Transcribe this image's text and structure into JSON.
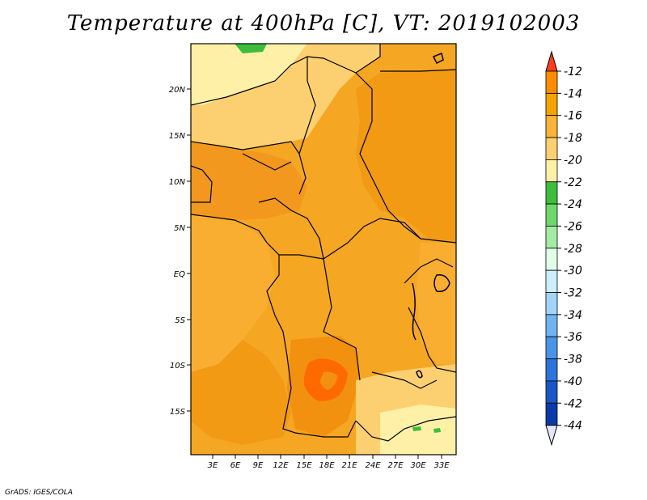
{
  "title": "Temperature at 400hPa [C], VT: 2019102003",
  "credit": "GrADS: IGES/COLA",
  "lat_labels": [
    "20N",
    "15N",
    "10N",
    "5N",
    "EQ",
    "5S",
    "10S",
    "15S"
  ],
  "lon_labels": [
    "3E",
    "6E",
    "9E",
    "12E",
    "15E",
    "18E",
    "21E",
    "24E",
    "27E",
    "30E",
    "33E"
  ],
  "colorbar": {
    "labels": [
      "-12",
      "-14",
      "-16",
      "-18",
      "-20",
      "-22",
      "-24",
      "-26",
      "-28",
      "-30",
      "-32",
      "-34",
      "-36",
      "-38",
      "-40",
      "-42",
      "-44"
    ],
    "colors": [
      "#ff6a00",
      "#ff8c00",
      "#f5a300",
      "#f9b43a",
      "#fcd070",
      "#fff0a8",
      "#3cbe3c",
      "#6cd86c",
      "#a4eca4",
      "#e0ffe6",
      "#cdeefe",
      "#a2d4f8",
      "#6fb4f0",
      "#4a94e8",
      "#2c74dc",
      "#1a56c8",
      "#0a3aa8",
      "#08106a"
    ],
    "bottom_triangle_color": "#e6e6fa",
    "top_triangle_color": "#ff3c1e"
  }
}
